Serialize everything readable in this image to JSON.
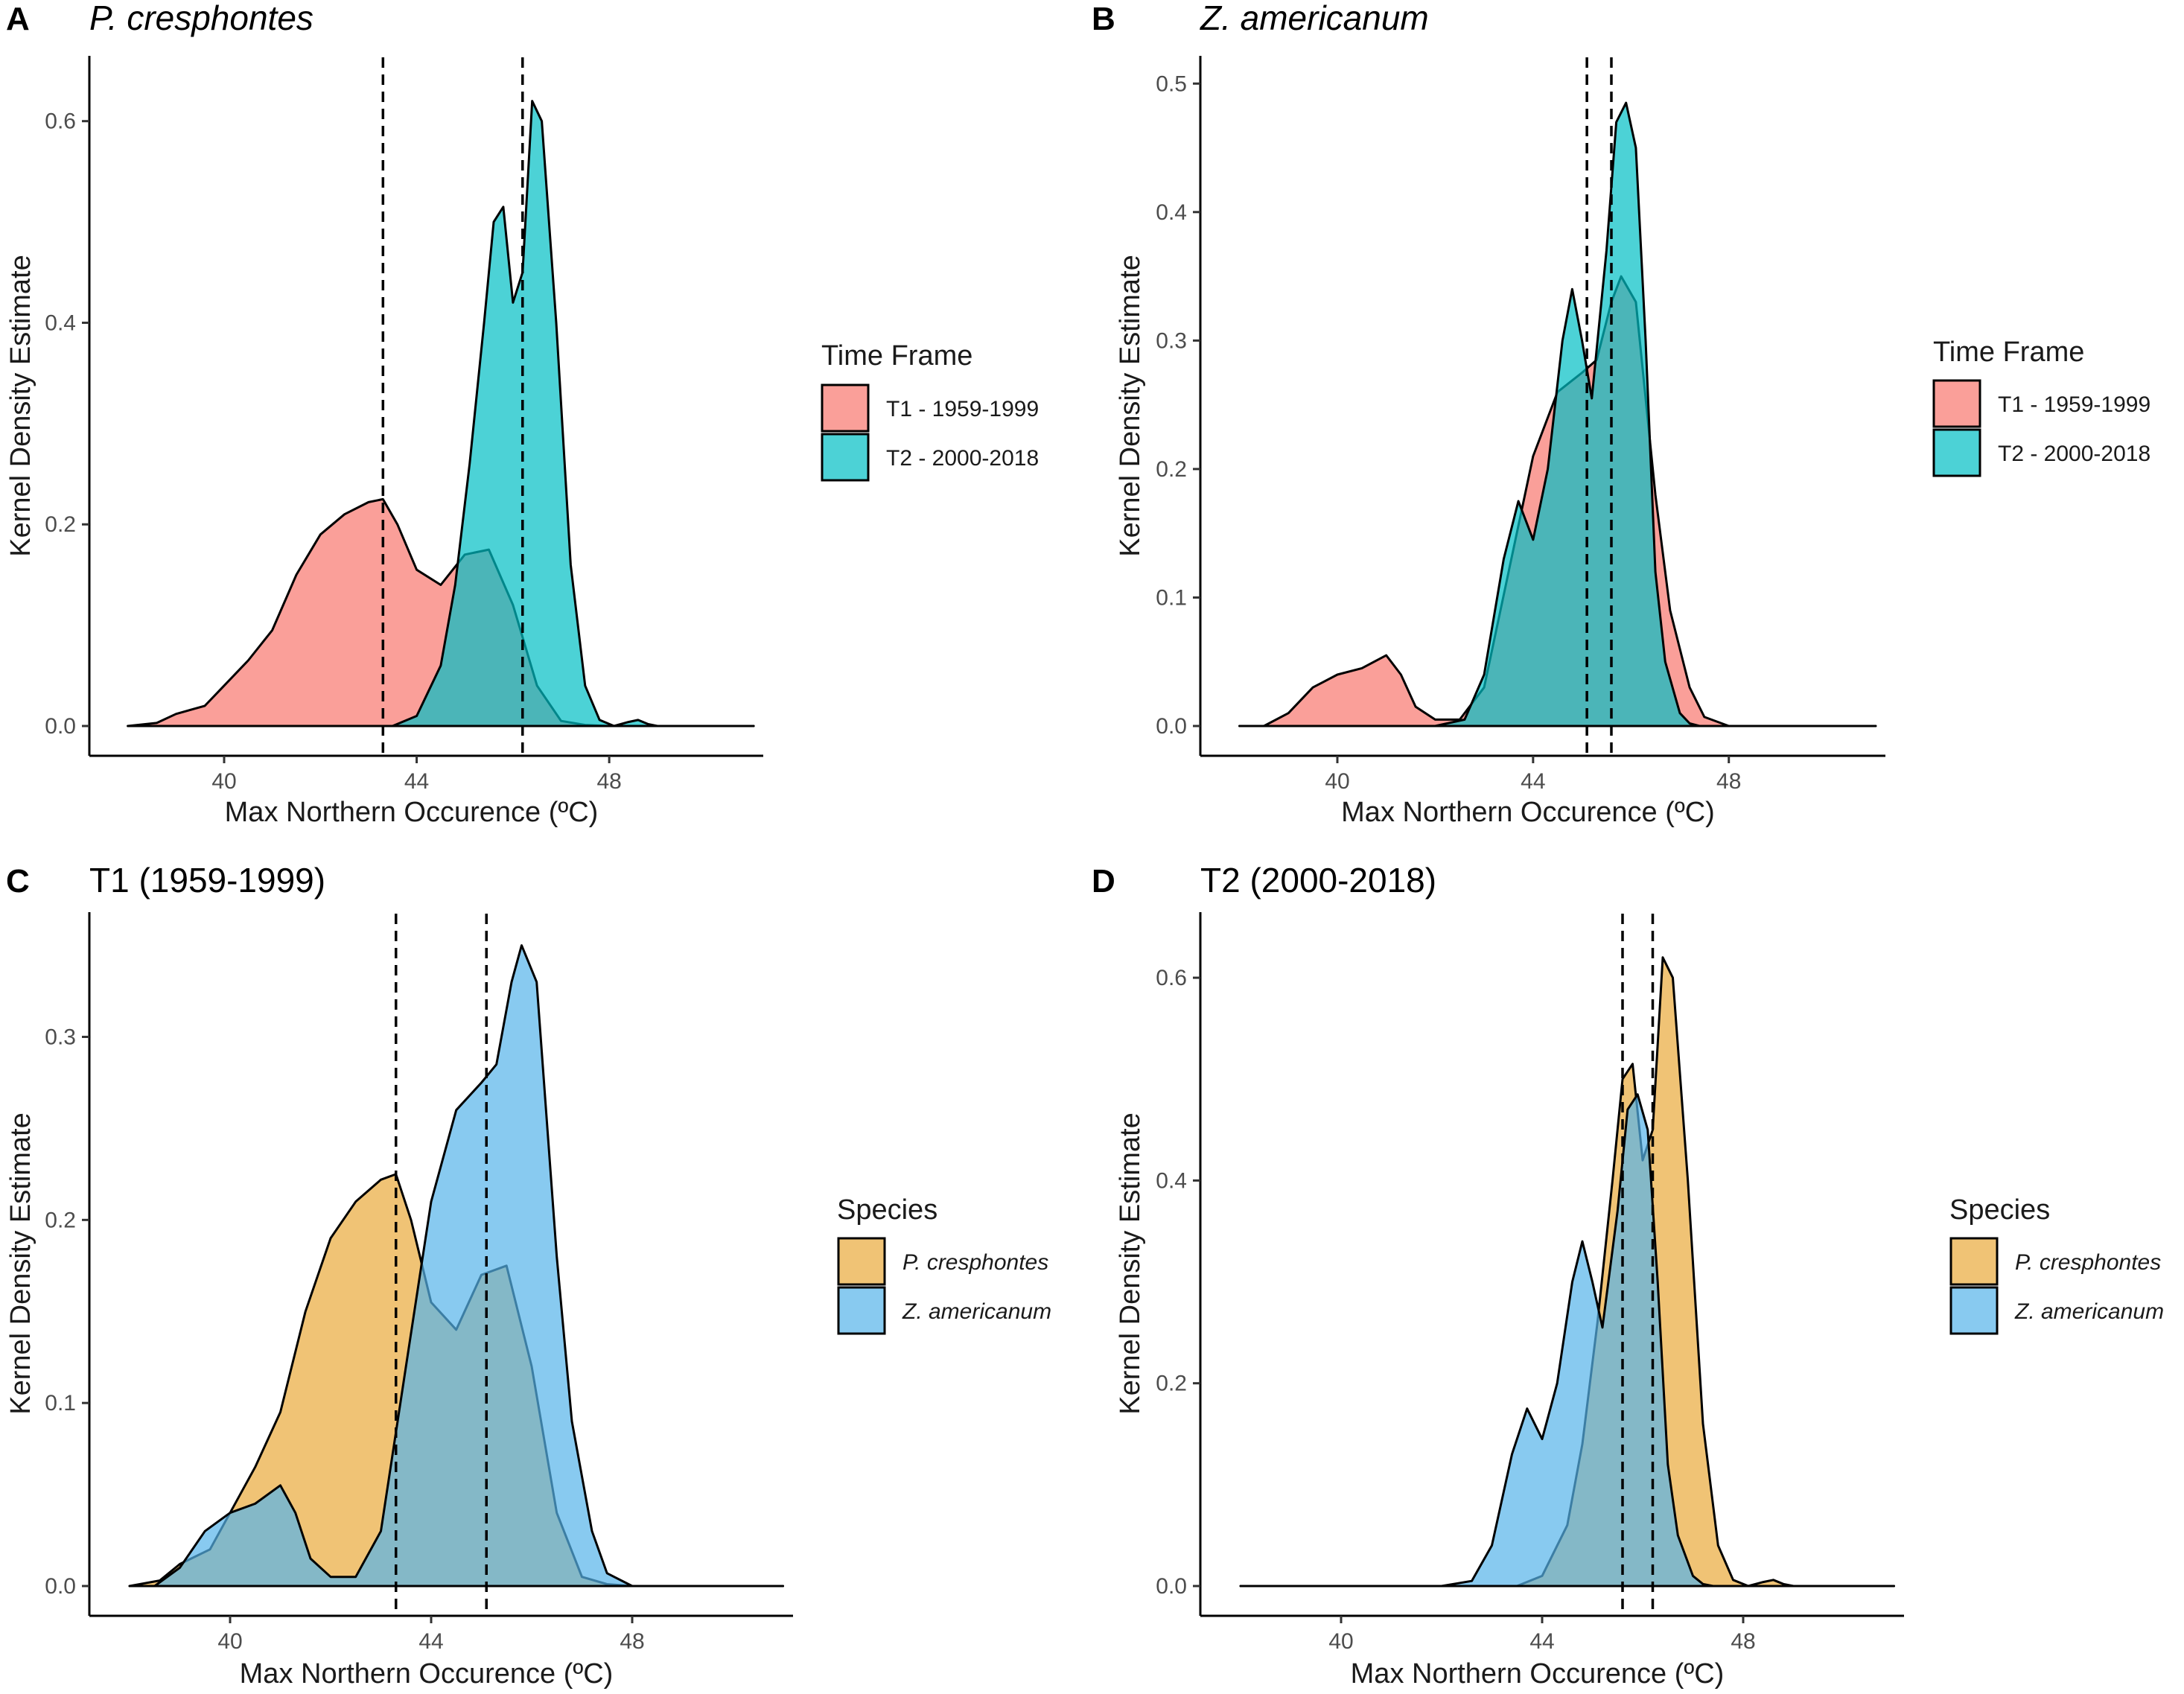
{
  "figure": {
    "x_axis_title": "Max Northern Occurence (ºC)",
    "y_axis_title": "Kernel Density Estimate"
  },
  "chart_data": [
    {
      "type": "area",
      "panel": "A",
      "title": "P. cresphontes",
      "title_italic": true,
      "xlabel": "Max Northern Occurence (ºC)",
      "ylabel": "Kernel Density Estimate",
      "xlim": [
        37.2,
        51.2
      ],
      "ylim": [
        0,
        0.65
      ],
      "xticks": [
        40,
        44,
        48
      ],
      "yticks": [
        0.0,
        0.2,
        0.4,
        0.6
      ],
      "vlines": [
        43.3,
        46.2
      ],
      "legend": {
        "title": "Time Frame",
        "position": "right",
        "italic": false
      },
      "series": [
        {
          "name": "T1 - 1959-1999",
          "color": "#F8766D",
          "x": [
            38.0,
            38.6,
            39.0,
            39.6,
            40.0,
            40.5,
            41.0,
            41.5,
            42.0,
            42.5,
            43.0,
            43.3,
            43.6,
            44.0,
            44.5,
            45.0,
            45.5,
            46.0,
            46.5,
            47.0,
            47.5,
            48.0,
            48.5,
            49.0,
            50.0,
            51.0
          ],
          "y": [
            0,
            0.003,
            0.012,
            0.02,
            0.04,
            0.065,
            0.095,
            0.15,
            0.19,
            0.21,
            0.222,
            0.225,
            0.2,
            0.155,
            0.14,
            0.17,
            0.175,
            0.12,
            0.04,
            0.005,
            0.001,
            0,
            0,
            0,
            0,
            0
          ]
        },
        {
          "name": "T2 - 2000-2018",
          "color": "#00BFC4",
          "x": [
            38.0,
            40.0,
            42.0,
            43.5,
            44.0,
            44.5,
            44.8,
            45.1,
            45.4,
            45.6,
            45.8,
            46.0,
            46.2,
            46.4,
            46.6,
            46.9,
            47.2,
            47.5,
            47.8,
            48.1,
            48.4,
            48.6,
            48.8,
            49.0,
            50.0,
            51.0
          ],
          "y": [
            0,
            0,
            0,
            0.0,
            0.01,
            0.06,
            0.14,
            0.26,
            0.4,
            0.5,
            0.515,
            0.42,
            0.45,
            0.62,
            0.6,
            0.4,
            0.16,
            0.04,
            0.006,
            0.0,
            0.004,
            0.006,
            0.002,
            0,
            0,
            0
          ]
        }
      ]
    },
    {
      "type": "area",
      "panel": "B",
      "title": "Z. americanum",
      "title_italic": true,
      "xlabel": "Max Northern Occurence (ºC)",
      "ylabel": "Kernel Density Estimate",
      "xlim": [
        37.2,
        51.2
      ],
      "ylim": [
        0,
        0.51
      ],
      "xticks": [
        40,
        44,
        48
      ],
      "yticks": [
        0.0,
        0.1,
        0.2,
        0.3,
        0.4,
        0.5
      ],
      "vlines": [
        45.1,
        45.6
      ],
      "legend": {
        "title": "Time Frame",
        "position": "right",
        "italic": false
      },
      "series": [
        {
          "name": "T1 - 1959-1999",
          "color": "#F8766D",
          "x": [
            38.0,
            38.5,
            39.0,
            39.5,
            40.0,
            40.5,
            41.0,
            41.3,
            41.6,
            42.0,
            42.5,
            43.0,
            43.5,
            44.0,
            44.5,
            45.0,
            45.3,
            45.6,
            45.8,
            46.1,
            46.5,
            46.8,
            47.2,
            47.5,
            48.0,
            51.0
          ],
          "y": [
            0,
            0.0,
            0.01,
            0.03,
            0.04,
            0.045,
            0.055,
            0.04,
            0.015,
            0.005,
            0.005,
            0.03,
            0.12,
            0.21,
            0.26,
            0.275,
            0.285,
            0.33,
            0.35,
            0.33,
            0.18,
            0.09,
            0.03,
            0.007,
            0,
            0
          ]
        },
        {
          "name": "T2 - 2000-2018",
          "color": "#00BFC4",
          "x": [
            38.0,
            40.0,
            42.0,
            42.6,
            43.0,
            43.4,
            43.7,
            44.0,
            44.3,
            44.6,
            44.8,
            45.0,
            45.2,
            45.5,
            45.7,
            45.9,
            46.1,
            46.3,
            46.5,
            46.7,
            47.0,
            47.2,
            47.4,
            48.0,
            50.0,
            51.0
          ],
          "y": [
            0,
            0,
            0,
            0.005,
            0.04,
            0.13,
            0.175,
            0.145,
            0.2,
            0.3,
            0.34,
            0.3,
            0.255,
            0.37,
            0.47,
            0.485,
            0.45,
            0.3,
            0.12,
            0.05,
            0.01,
            0.002,
            0,
            0,
            0,
            0
          ]
        }
      ]
    },
    {
      "type": "area",
      "panel": "C",
      "title": "T1 (1959-1999)",
      "title_italic": false,
      "xlabel": "Max Northern Occurence (ºC)",
      "ylabel": "Kernel Density Estimate",
      "xlim": [
        37.2,
        51.2
      ],
      "ylim": [
        0,
        0.36
      ],
      "xticks": [
        40,
        44,
        48
      ],
      "yticks": [
        0.0,
        0.1,
        0.2,
        0.3
      ],
      "vlines": [
        43.3,
        45.1
      ],
      "legend": {
        "title": "Species",
        "position": "right",
        "italic": true
      },
      "series": [
        {
          "name": "P. cresphontes",
          "color": "#E9A93A",
          "x": [
            38.0,
            38.6,
            39.0,
            39.6,
            40.0,
            40.5,
            41.0,
            41.5,
            42.0,
            42.5,
            43.0,
            43.3,
            43.6,
            44.0,
            44.5,
            45.0,
            45.5,
            46.0,
            46.5,
            47.0,
            47.5,
            48.0,
            48.5,
            49.0,
            50.0,
            51.0
          ],
          "y": [
            0,
            0.003,
            0.012,
            0.02,
            0.04,
            0.065,
            0.095,
            0.15,
            0.19,
            0.21,
            0.222,
            0.225,
            0.2,
            0.155,
            0.14,
            0.17,
            0.175,
            0.12,
            0.04,
            0.005,
            0.001,
            0,
            0,
            0,
            0,
            0
          ]
        },
        {
          "name": "Z. americanum",
          "color": "#56B4E9",
          "x": [
            38.0,
            38.5,
            39.0,
            39.5,
            40.0,
            40.5,
            41.0,
            41.3,
            41.6,
            42.0,
            42.5,
            43.0,
            43.5,
            44.0,
            44.5,
            45.0,
            45.3,
            45.6,
            45.8,
            46.1,
            46.5,
            46.8,
            47.2,
            47.5,
            48.0,
            51.0
          ],
          "y": [
            0,
            0.0,
            0.01,
            0.03,
            0.04,
            0.045,
            0.055,
            0.04,
            0.015,
            0.005,
            0.005,
            0.03,
            0.12,
            0.21,
            0.26,
            0.275,
            0.285,
            0.33,
            0.35,
            0.33,
            0.18,
            0.09,
            0.03,
            0.007,
            0,
            0
          ]
        }
      ]
    },
    {
      "type": "area",
      "panel": "D",
      "title": "T2 (2000-2018)",
      "title_italic": false,
      "xlabel": "Max Northern Occurence (ºC)",
      "ylabel": "Kernel Density Estimate",
      "xlim": [
        37.2,
        51.2
      ],
      "ylim": [
        0,
        0.65
      ],
      "xticks": [
        40,
        44,
        48
      ],
      "yticks": [
        0.0,
        0.2,
        0.4,
        0.6
      ],
      "vlines": [
        45.6,
        46.2
      ],
      "legend": {
        "title": "Species",
        "position": "right",
        "italic": true
      },
      "series": [
        {
          "name": "P. cresphontes",
          "color": "#E9A93A",
          "x": [
            38.0,
            40.0,
            42.0,
            43.5,
            44.0,
            44.5,
            44.8,
            45.1,
            45.4,
            45.6,
            45.8,
            46.0,
            46.2,
            46.4,
            46.6,
            46.9,
            47.2,
            47.5,
            47.8,
            48.1,
            48.4,
            48.6,
            48.8,
            49.0,
            50.0,
            51.0
          ],
          "y": [
            0,
            0,
            0,
            0.0,
            0.01,
            0.06,
            0.14,
            0.26,
            0.4,
            0.5,
            0.515,
            0.42,
            0.45,
            0.62,
            0.6,
            0.4,
            0.16,
            0.04,
            0.006,
            0.0,
            0.004,
            0.006,
            0.002,
            0,
            0,
            0
          ]
        },
        {
          "name": "Z. americanum",
          "color": "#56B4E9",
          "x": [
            38.0,
            40.0,
            42.0,
            42.6,
            43.0,
            43.4,
            43.7,
            44.0,
            44.3,
            44.6,
            44.8,
            45.0,
            45.2,
            45.5,
            45.7,
            45.9,
            46.1,
            46.3,
            46.5,
            46.7,
            47.0,
            47.2,
            47.4,
            48.0,
            50.0,
            51.0
          ],
          "y": [
            0,
            0,
            0,
            0.005,
            0.04,
            0.13,
            0.175,
            0.145,
            0.2,
            0.3,
            0.34,
            0.3,
            0.255,
            0.37,
            0.47,
            0.485,
            0.45,
            0.3,
            0.12,
            0.05,
            0.01,
            0.002,
            0,
            0,
            0,
            0
          ]
        }
      ]
    }
  ]
}
